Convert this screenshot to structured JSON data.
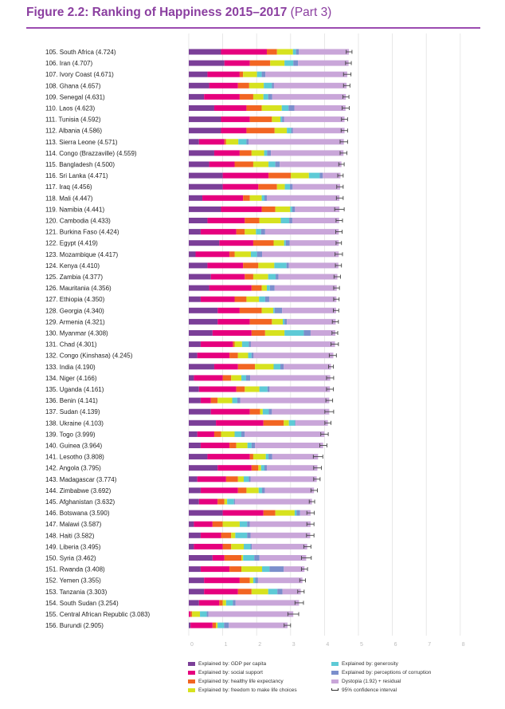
{
  "figure": {
    "title_main": "Figure 2.2: Ranking of Happiness 2015–2017",
    "title_sub": "(Part 3)",
    "accent_color": "#8b3fa0"
  },
  "legend": {
    "items": [
      {
        "key": "gdp",
        "label": "Explained by: GDP per capita",
        "color": "#7b3f98"
      },
      {
        "key": "social",
        "label": "Explained by: social support",
        "color": "#e6007e"
      },
      {
        "key": "health",
        "label": "Explained by: healthy life expectancy",
        "color": "#f26522"
      },
      {
        "key": "freedom",
        "label": "Explained by: freedom to make life choices",
        "color": "#d7e21f"
      },
      {
        "key": "generosity",
        "label": "Explained by: generosity",
        "color": "#5ecad6"
      },
      {
        "key": "corruption",
        "label": "Explained by: perceptions of corruption",
        "color": "#7b8fcc"
      },
      {
        "key": "dystopia",
        "label": "Dystopia (1.92) + residual",
        "color": "#c9a6d9"
      },
      {
        "key": "ci",
        "label": "95% confidence interval",
        "color": "#333333"
      }
    ]
  },
  "chart_data": {
    "type": "bar",
    "orientation": "horizontal",
    "stacked": true,
    "title": "Figure 2.2: Ranking of Happiness 2015–2017 (Part 3)",
    "xlim": [
      0,
      8
    ],
    "xticks": [
      "0",
      "1",
      "2",
      "3",
      "4",
      "5",
      "6",
      "7",
      "8"
    ],
    "grid": true,
    "legend_position": "bottom",
    "series_names": [
      "Explained by: GDP per capita",
      "Explained by: social support",
      "Explained by: healthy life expectancy",
      "Explained by: freedom to make life choices",
      "Explained by: generosity",
      "Explained by: perceptions of corruption",
      "Dystopia (1.92) + residual"
    ],
    "rows": [
      {
        "label": "105. South Africa (4.724)",
        "score": 4.724,
        "parts": [
          0.95,
          1.35,
          0.3,
          0.47,
          0.09,
          0.08,
          1.48
        ],
        "ci": [
          4.64,
          4.81
        ]
      },
      {
        "label": "106. Iran (4.707)",
        "score": 4.707,
        "parts": [
          1.05,
          0.75,
          0.6,
          0.42,
          0.26,
          0.14,
          1.49
        ],
        "ci": [
          4.62,
          4.79
        ]
      },
      {
        "label": "107. Ivory Coast (4.671)",
        "score": 4.671,
        "parts": [
          0.55,
          0.95,
          0.1,
          0.41,
          0.14,
          0.11,
          2.41
        ],
        "ci": [
          4.56,
          4.78
        ]
      },
      {
        "label": "108. Ghana (4.657)",
        "score": 4.657,
        "parts": [
          0.6,
          0.85,
          0.33,
          0.43,
          0.24,
          0.06,
          2.14
        ],
        "ci": [
          4.56,
          4.75
        ]
      },
      {
        "label": "109. Senegal (4.631)",
        "score": 4.631,
        "parts": [
          0.45,
          1.05,
          0.4,
          0.3,
          0.14,
          0.12,
          2.17
        ],
        "ci": [
          4.54,
          4.72
        ]
      },
      {
        "label": "110. Laos (4.623)",
        "score": 4.623,
        "parts": [
          0.75,
          0.95,
          0.45,
          0.59,
          0.2,
          0.17,
          1.51
        ],
        "ci": [
          4.52,
          4.73
        ]
      },
      {
        "label": "111. Tunisia (4.592)",
        "score": 4.592,
        "parts": [
          0.95,
          0.85,
          0.65,
          0.25,
          0.05,
          0.06,
          1.78
        ],
        "ci": [
          4.5,
          4.68
        ]
      },
      {
        "label": "112. Albania (4.586)",
        "score": 4.586,
        "parts": [
          0.95,
          0.75,
          0.83,
          0.36,
          0.13,
          0.05,
          1.52
        ],
        "ci": [
          4.49,
          4.68
        ]
      },
      {
        "label": "113. Sierra Leone (4.571)",
        "score": 4.571,
        "parts": [
          0.3,
          0.75,
          0.05,
          0.36,
          0.24,
          0.06,
          2.81
        ],
        "ci": [
          4.46,
          4.68
        ]
      },
      {
        "label": "114. Congo (Brazzaville) (4.559)",
        "score": 4.559,
        "parts": [
          0.75,
          0.75,
          0.35,
          0.37,
          0.09,
          0.11,
          2.14
        ],
        "ci": [
          4.46,
          4.66
        ]
      },
      {
        "label": "115. Bangladesh (4.500)",
        "score": 4.5,
        "parts": [
          0.6,
          0.75,
          0.55,
          0.45,
          0.2,
          0.13,
          1.82
        ],
        "ci": [
          4.42,
          4.58
        ]
      },
      {
        "label": "116. Sri Lanka (4.471)",
        "score": 4.471,
        "parts": [
          1.0,
          1.35,
          0.66,
          0.53,
          0.32,
          0.09,
          0.52
        ],
        "ci": [
          4.39,
          4.55
        ]
      },
      {
        "label": "117. Iraq (4.456)",
        "score": 4.456,
        "parts": [
          1.0,
          1.05,
          0.55,
          0.23,
          0.15,
          0.08,
          1.4
        ],
        "ci": [
          4.36,
          4.55
        ]
      },
      {
        "label": "118. Mali (4.447)",
        "score": 4.447,
        "parts": [
          0.4,
          1.2,
          0.2,
          0.35,
          0.08,
          0.07,
          2.14
        ],
        "ci": [
          4.35,
          4.55
        ]
      },
      {
        "label": "119. Namibia (4.441)",
        "score": 4.441,
        "parts": [
          0.95,
          1.2,
          0.4,
          0.44,
          0.06,
          0.08,
          1.31
        ],
        "ci": [
          4.3,
          4.58
        ]
      },
      {
        "label": "120. Cambodia (4.433)",
        "score": 4.433,
        "parts": [
          0.55,
          1.1,
          0.43,
          0.63,
          0.25,
          0.09,
          1.38
        ],
        "ci": [
          4.34,
          4.53
        ]
      },
      {
        "label": "121. Burkina Faso (4.424)",
        "score": 4.424,
        "parts": [
          0.35,
          1.05,
          0.25,
          0.33,
          0.15,
          0.12,
          2.17
        ],
        "ci": [
          4.33,
          4.52
        ]
      },
      {
        "label": "122. Egypt (4.419)",
        "score": 4.419,
        "parts": [
          0.9,
          1.0,
          0.6,
          0.31,
          0.05,
          0.11,
          1.45
        ],
        "ci": [
          4.34,
          4.5
        ]
      },
      {
        "label": "123. Mozambique (4.417)",
        "score": 4.417,
        "parts": [
          0.2,
          1.0,
          0.15,
          0.48,
          0.18,
          0.15,
          2.26
        ],
        "ci": [
          4.31,
          4.53
        ]
      },
      {
        "label": "124. Kenya (4.410)",
        "score": 4.41,
        "parts": [
          0.55,
          1.05,
          0.45,
          0.47,
          0.36,
          0.07,
          1.46
        ],
        "ci": [
          4.32,
          4.5
        ]
      },
      {
        "label": "125. Zambia (4.377)",
        "score": 4.377,
        "parts": [
          0.65,
          1.0,
          0.25,
          0.44,
          0.22,
          0.08,
          1.74
        ],
        "ci": [
          4.28,
          4.47
        ]
      },
      {
        "label": "126. Mauritania (4.356)",
        "score": 4.356,
        "parts": [
          0.6,
          1.25,
          0.3,
          0.15,
          0.09,
          0.14,
          1.83
        ],
        "ci": [
          4.27,
          4.44
        ]
      },
      {
        "label": "127. Ethiopia (4.350)",
        "score": 4.35,
        "parts": [
          0.35,
          1.0,
          0.35,
          0.37,
          0.18,
          0.12,
          1.98
        ],
        "ci": [
          4.27,
          4.43
        ]
      },
      {
        "label": "128. Georgia (4.340)",
        "score": 4.34,
        "parts": [
          0.85,
          0.65,
          0.65,
          0.34,
          0.04,
          0.22,
          1.59
        ],
        "ci": [
          4.26,
          4.42
        ]
      },
      {
        "label": "129. Armenia (4.321)",
        "score": 4.321,
        "parts": [
          0.85,
          0.95,
          0.65,
          0.32,
          0.05,
          0.07,
          1.44
        ],
        "ci": [
          4.23,
          4.41
        ]
      },
      {
        "label": "130. Myanmar (4.308)",
        "score": 4.308,
        "parts": [
          0.7,
          1.15,
          0.4,
          0.57,
          0.57,
          0.2,
          0.73
        ],
        "ci": [
          4.22,
          4.39
        ]
      },
      {
        "label": "131. Chad (4.301)",
        "score": 4.301,
        "parts": [
          0.35,
          0.95,
          0.05,
          0.22,
          0.2,
          0.06,
          2.48
        ],
        "ci": [
          4.19,
          4.41
        ]
      },
      {
        "label": "132. Congo (Kinshasa) (4.245)",
        "score": 4.245,
        "parts": [
          0.25,
          0.95,
          0.25,
          0.3,
          0.1,
          0.06,
          2.35
        ],
        "ci": [
          4.14,
          4.35
        ]
      },
      {
        "label": "133. India (4.190)",
        "score": 4.19,
        "parts": [
          0.75,
          0.7,
          0.5,
          0.55,
          0.2,
          0.1,
          1.39
        ],
        "ci": [
          4.12,
          4.26
        ]
      },
      {
        "label": "134. Niger (4.166)",
        "score": 4.166,
        "parts": [
          0.15,
          0.85,
          0.25,
          0.3,
          0.14,
          0.12,
          2.36
        ],
        "ci": [
          4.06,
          4.27
        ]
      },
      {
        "label": "135. Uganda (4.161)",
        "score": 4.161,
        "parts": [
          0.3,
          1.1,
          0.25,
          0.43,
          0.24,
          0.06,
          1.78
        ],
        "ci": [
          4.06,
          4.26
        ]
      },
      {
        "label": "136. Benin (4.141)",
        "score": 4.141,
        "parts": [
          0.35,
          0.3,
          0.2,
          0.43,
          0.15,
          0.09,
          2.62
        ],
        "ci": [
          4.04,
          4.24
        ]
      },
      {
        "label": "137. Sudan (4.139)",
        "score": 4.139,
        "parts": [
          0.65,
          1.15,
          0.3,
          0.08,
          0.18,
          0.09,
          1.69
        ],
        "ci": [
          4.01,
          4.27
        ]
      },
      {
        "label": "138. Ukraine (4.103)",
        "score": 4.103,
        "parts": [
          0.8,
          1.4,
          0.6,
          0.15,
          0.18,
          0.02,
          0.95
        ],
        "ci": [
          4.01,
          4.19
        ]
      },
      {
        "label": "139. Togo (3.999)",
        "score": 3.999,
        "parts": [
          0.25,
          0.5,
          0.2,
          0.4,
          0.2,
          0.1,
          2.35
        ],
        "ci": [
          3.89,
          4.11
        ]
      },
      {
        "label": "140. Guinea (3.964)",
        "score": 3.964,
        "parts": [
          0.35,
          0.85,
          0.2,
          0.33,
          0.12,
          0.1,
          2.01
        ],
        "ci": [
          3.86,
          4.07
        ]
      },
      {
        "label": "141. Lesotho (3.808)",
        "score": 3.808,
        "parts": [
          0.55,
          1.25,
          0.1,
          0.37,
          0.08,
          0.11,
          1.35
        ],
        "ci": [
          3.67,
          3.95
        ]
      },
      {
        "label": "142. Angola (3.795)",
        "score": 3.795,
        "parts": [
          0.85,
          1.0,
          0.2,
          0.08,
          0.1,
          0.07,
          1.49
        ],
        "ci": [
          3.68,
          3.91
        ]
      },
      {
        "label": "143. Madagascar (3.774)",
        "score": 3.774,
        "parts": [
          0.25,
          0.85,
          0.35,
          0.17,
          0.15,
          0.05,
          1.95
        ],
        "ci": [
          3.68,
          3.87
        ]
      },
      {
        "label": "144. Zimbabwe (3.692)",
        "score": 3.692,
        "parts": [
          0.35,
          1.1,
          0.25,
          0.36,
          0.1,
          0.08,
          1.45
        ],
        "ci": [
          3.6,
          3.79
        ]
      },
      {
        "label": "145. Afghanistan (3.632)",
        "score": 3.632,
        "parts": [
          0.3,
          0.55,
          0.2,
          0.08,
          0.2,
          0.03,
          2.27
        ],
        "ci": [
          3.55,
          3.71
        ]
      },
      {
        "label": "146. Botswana (3.590)",
        "score": 3.59,
        "parts": [
          1.0,
          1.2,
          0.35,
          0.57,
          0.06,
          0.1,
          0.31
        ],
        "ci": [
          3.48,
          3.7
        ]
      },
      {
        "label": "147. Malawi (3.587)",
        "score": 3.587,
        "parts": [
          0.15,
          0.55,
          0.3,
          0.5,
          0.22,
          0.08,
          1.79
        ],
        "ci": [
          3.48,
          3.69
        ]
      },
      {
        "label": "148. Haiti (3.582)",
        "score": 3.582,
        "parts": [
          0.35,
          0.6,
          0.3,
          0.12,
          0.35,
          0.1,
          1.76
        ],
        "ci": [
          3.47,
          3.69
        ]
      },
      {
        "label": "149. Liberia (3.495)",
        "score": 3.495,
        "parts": [
          0.15,
          0.85,
          0.25,
          0.37,
          0.2,
          0.04,
          1.63
        ],
        "ci": [
          3.39,
          3.6
        ]
      },
      {
        "label": "150. Syria (3.462)",
        "score": 3.462,
        "parts": [
          0.7,
          0.35,
          0.5,
          0.05,
          0.33,
          0.15,
          1.38
        ],
        "ci": [
          3.32,
          3.61
        ]
      },
      {
        "label": "151. Rwanda (3.408)",
        "score": 3.408,
        "parts": [
          0.35,
          0.85,
          0.35,
          0.61,
          0.22,
          0.42,
          0.61
        ],
        "ci": [
          3.32,
          3.5
        ]
      },
      {
        "label": "152. Yemen (3.355)",
        "score": 3.355,
        "parts": [
          0.45,
          1.05,
          0.3,
          0.1,
          0.06,
          0.08,
          1.31
        ],
        "ci": [
          3.27,
          3.44
        ]
      },
      {
        "label": "153. Tanzania (3.303)",
        "score": 3.303,
        "parts": [
          0.45,
          1.0,
          0.4,
          0.49,
          0.27,
          0.15,
          0.54
        ],
        "ci": [
          3.21,
          3.4
        ]
      },
      {
        "label": "154. South Sudan (3.254)",
        "score": 3.254,
        "parts": [
          0.3,
          0.6,
          0.1,
          0.1,
          0.2,
          0.08,
          1.87
        ],
        "ci": [
          3.13,
          3.38
        ]
      },
      {
        "label": "155. Central African Republic (3.083)",
        "score": 3.083,
        "parts": [
          0.0,
          0.05,
          0.05,
          0.23,
          0.2,
          0.05,
          2.5
        ],
        "ci": [
          2.92,
          3.24
        ]
      },
      {
        "label": "156. Burundi (2.905)",
        "score": 2.905,
        "parts": [
          0.05,
          0.65,
          0.1,
          0.05,
          0.19,
          0.14,
          1.73
        ],
        "ci": [
          2.81,
          3.0
        ]
      }
    ]
  }
}
